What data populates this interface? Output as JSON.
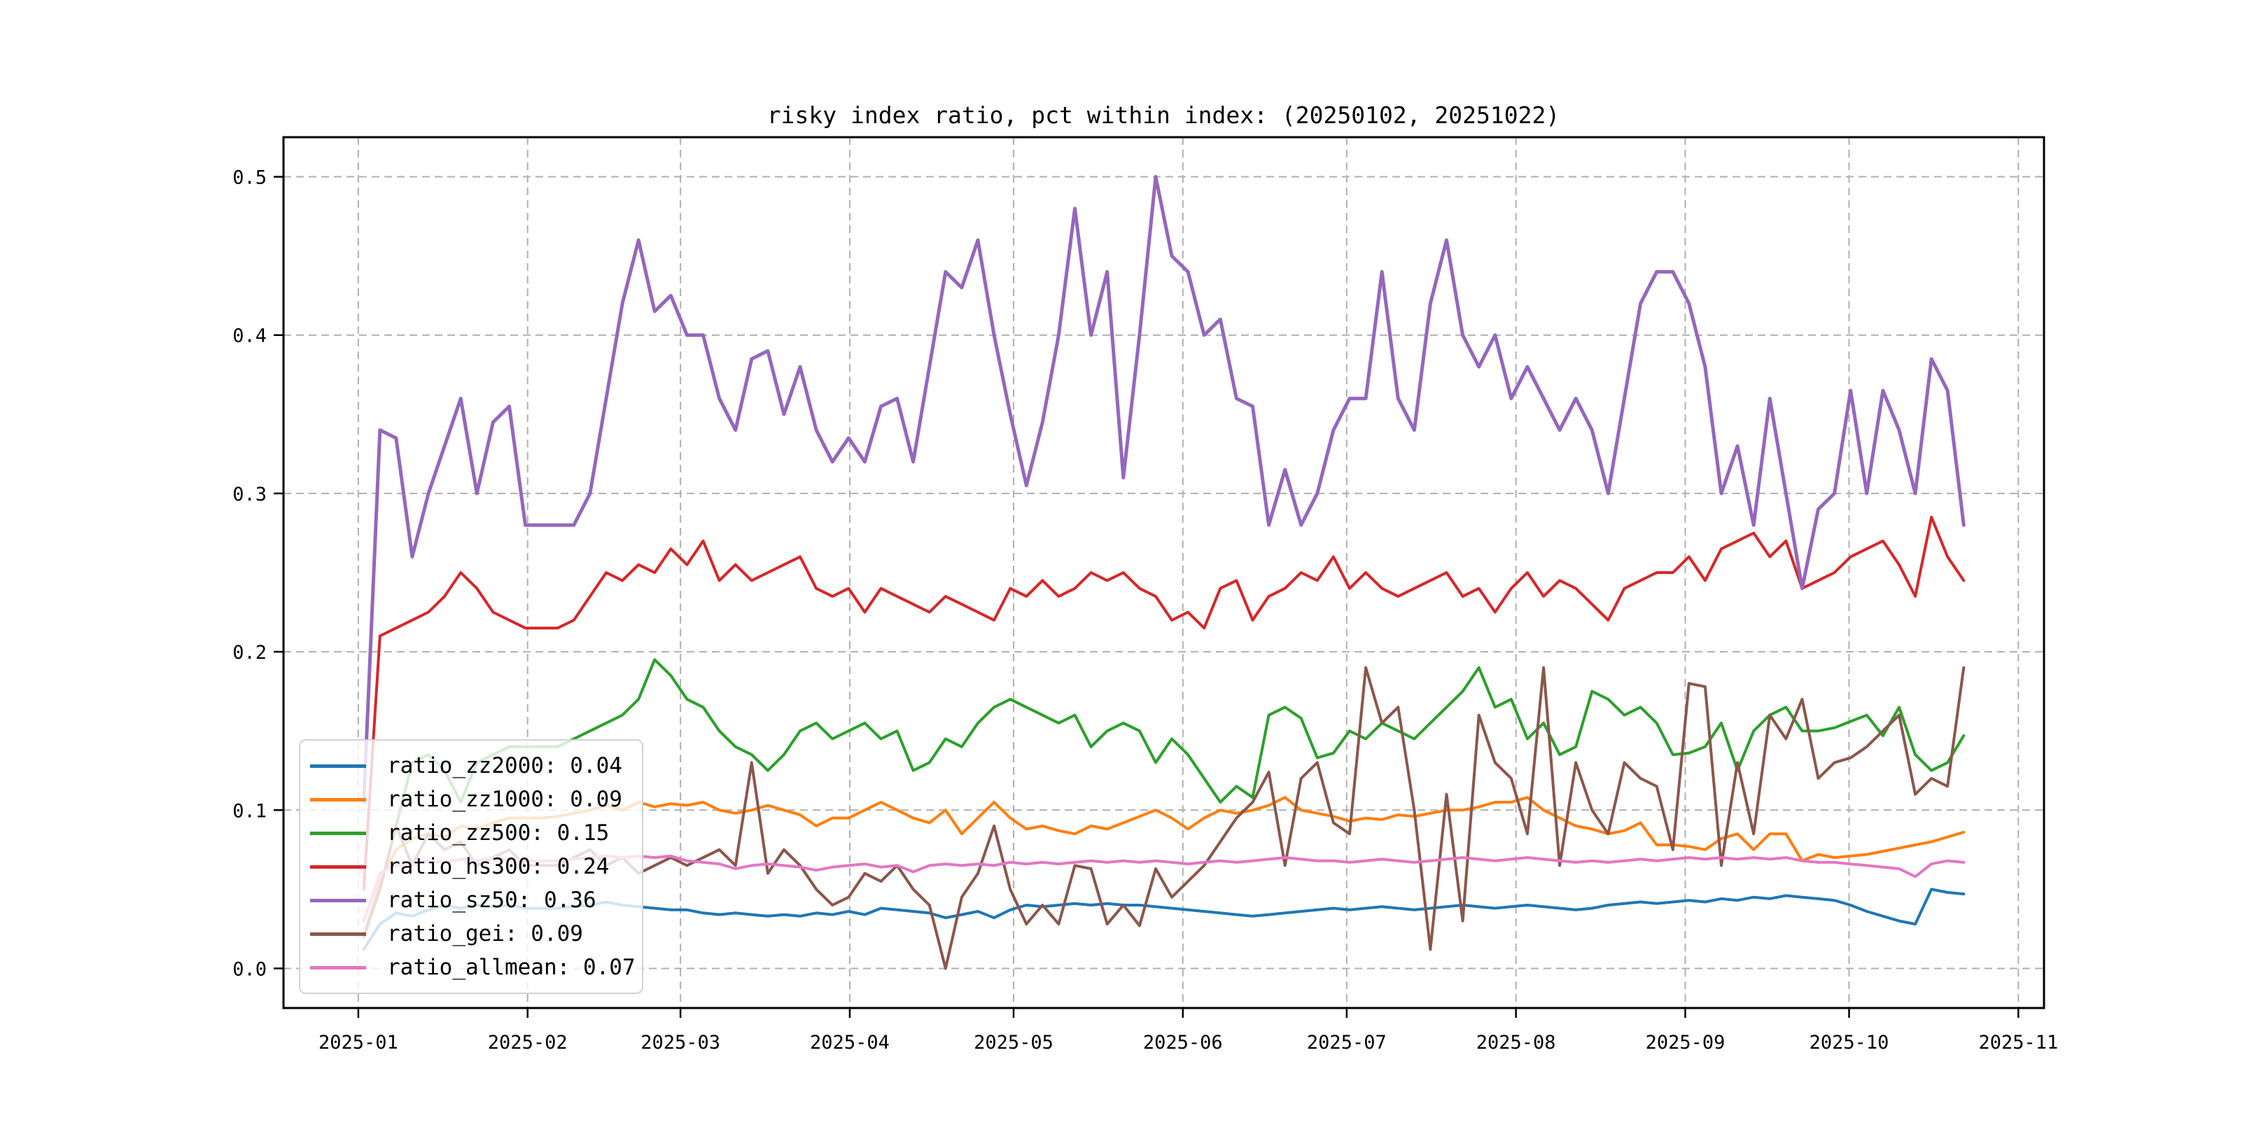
{
  "title": "risky index ratio, pct within index: (20250102, 20251022)",
  "colors": {
    "background": "#ffffff",
    "grid": "#b0b0b0",
    "spine": "#000000",
    "tick_label": "#000000",
    "legend_border": "#d2d2d2"
  },
  "legend": {
    "position": "lower left"
  },
  "chart_data": {
    "type": "line",
    "title": "risky index ratio, pct within index: (20250102, 20251022)",
    "xlabel": "",
    "ylabel": "",
    "grid": true,
    "legend_position": "lower left",
    "x_axis": {
      "tick_labels": [
        "2025-01",
        "2025-02",
        "2025-03",
        "2025-04",
        "2025-05",
        "2025-06",
        "2025-07",
        "2025-08",
        "2025-09",
        "2025-10",
        "2025-11"
      ],
      "tick_days": [
        0,
        31,
        59,
        90,
        120,
        151,
        181,
        212,
        243,
        273,
        304
      ],
      "data_start_day": 1,
      "data_end_day": 294,
      "xlim_days": [
        -13.7,
        308.7
      ]
    },
    "y_axis": {
      "tick_labels": [
        "0.0",
        "0.1",
        "0.2",
        "0.3",
        "0.4",
        "0.5"
      ],
      "tick_values": [
        0.0,
        0.1,
        0.2,
        0.3,
        0.4,
        0.5
      ],
      "ylim": [
        -0.025,
        0.525
      ]
    },
    "series": [
      {
        "name": "ratio_zz2000",
        "legend_label": "ratio_zz2000: 0.04",
        "mean": 0.04,
        "color": "#1f77b4",
        "values": [
          0.012,
          0.028,
          0.035,
          0.033,
          0.037,
          0.04,
          0.038,
          0.04,
          0.039,
          0.04,
          0.038,
          0.038,
          0.038,
          0.039,
          0.04,
          0.042,
          0.04,
          0.039,
          0.038,
          0.037,
          0.037,
          0.035,
          0.034,
          0.035,
          0.034,
          0.033,
          0.034,
          0.033,
          0.035,
          0.034,
          0.036,
          0.034,
          0.038,
          0.037,
          0.036,
          0.035,
          0.032,
          0.034,
          0.036,
          0.032,
          0.037,
          0.04,
          0.039,
          0.04,
          0.041,
          0.04,
          0.041,
          0.04,
          0.04,
          0.039,
          0.038,
          0.037,
          0.036,
          0.035,
          0.034,
          0.033,
          0.034,
          0.035,
          0.036,
          0.037,
          0.038,
          0.037,
          0.038,
          0.039,
          0.038,
          0.037,
          0.038,
          0.039,
          0.04,
          0.039,
          0.038,
          0.039,
          0.04,
          0.039,
          0.038,
          0.037,
          0.038,
          0.04,
          0.041,
          0.042,
          0.041,
          0.042,
          0.043,
          0.042,
          0.044,
          0.043,
          0.045,
          0.044,
          0.046,
          0.045,
          0.044,
          0.043,
          0.04,
          0.036,
          0.033,
          0.03,
          0.028,
          0.05,
          0.048,
          0.047
        ]
      },
      {
        "name": "ratio_zz1000",
        "legend_label": "ratio_zz1000: 0.09",
        "mean": 0.09,
        "color": "#ff7f0e",
        "values": [
          0.02,
          0.055,
          0.075,
          0.082,
          0.085,
          0.083,
          0.09,
          0.088,
          0.092,
          0.095,
          0.095,
          0.095,
          0.096,
          0.098,
          0.1,
          0.103,
          0.1,
          0.105,
          0.102,
          0.104,
          0.103,
          0.105,
          0.1,
          0.098,
          0.1,
          0.103,
          0.1,
          0.097,
          0.09,
          0.095,
          0.095,
          0.1,
          0.105,
          0.1,
          0.095,
          0.092,
          0.1,
          0.085,
          0.095,
          0.105,
          0.095,
          0.088,
          0.09,
          0.087,
          0.085,
          0.09,
          0.088,
          0.092,
          0.096,
          0.1,
          0.095,
          0.088,
          0.095,
          0.1,
          0.098,
          0.1,
          0.103,
          0.108,
          0.1,
          0.098,
          0.096,
          0.093,
          0.095,
          0.094,
          0.097,
          0.096,
          0.098,
          0.1,
          0.1,
          0.102,
          0.105,
          0.105,
          0.108,
          0.1,
          0.095,
          0.09,
          0.088,
          0.085,
          0.087,
          0.092,
          0.078,
          0.078,
          0.077,
          0.075,
          0.082,
          0.085,
          0.075,
          0.085,
          0.085,
          0.068,
          0.072,
          0.07,
          0.071,
          0.072,
          0.074,
          0.076,
          0.078,
          0.08,
          0.083,
          0.086
        ]
      },
      {
        "name": "ratio_zz500",
        "legend_label": "ratio_zz500: 0.15",
        "mean": 0.15,
        "color": "#2ca02c",
        "values": [
          0.02,
          0.05,
          0.09,
          0.13,
          0.135,
          0.125,
          0.105,
          0.13,
          0.135,
          0.14,
          0.14,
          0.14,
          0.14,
          0.145,
          0.15,
          0.155,
          0.16,
          0.17,
          0.195,
          0.185,
          0.17,
          0.165,
          0.15,
          0.14,
          0.135,
          0.125,
          0.135,
          0.15,
          0.155,
          0.145,
          0.15,
          0.155,
          0.145,
          0.15,
          0.125,
          0.13,
          0.145,
          0.14,
          0.155,
          0.165,
          0.17,
          0.165,
          0.16,
          0.155,
          0.16,
          0.14,
          0.15,
          0.155,
          0.15,
          0.13,
          0.145,
          0.135,
          0.12,
          0.105,
          0.115,
          0.108,
          0.16,
          0.165,
          0.158,
          0.133,
          0.136,
          0.15,
          0.145,
          0.155,
          0.15,
          0.145,
          0.155,
          0.165,
          0.175,
          0.19,
          0.165,
          0.17,
          0.145,
          0.155,
          0.135,
          0.14,
          0.175,
          0.17,
          0.16,
          0.165,
          0.155,
          0.135,
          0.136,
          0.14,
          0.155,
          0.125,
          0.15,
          0.16,
          0.165,
          0.15,
          0.15,
          0.152,
          0.156,
          0.16,
          0.147,
          0.165,
          0.135,
          0.125,
          0.13,
          0.147
        ]
      },
      {
        "name": "ratio_hs300",
        "legend_label": "ratio_hs300: 0.24",
        "mean": 0.24,
        "color": "#d62728",
        "values": [
          0.05,
          0.21,
          0.215,
          0.22,
          0.225,
          0.235,
          0.25,
          0.24,
          0.225,
          0.22,
          0.215,
          0.215,
          0.215,
          0.22,
          0.235,
          0.25,
          0.245,
          0.255,
          0.25,
          0.265,
          0.255,
          0.27,
          0.245,
          0.255,
          0.245,
          0.25,
          0.255,
          0.26,
          0.24,
          0.235,
          0.24,
          0.225,
          0.24,
          0.235,
          0.23,
          0.225,
          0.235,
          0.23,
          0.225,
          0.22,
          0.24,
          0.235,
          0.245,
          0.235,
          0.24,
          0.25,
          0.245,
          0.25,
          0.24,
          0.235,
          0.22,
          0.225,
          0.215,
          0.24,
          0.245,
          0.22,
          0.235,
          0.24,
          0.25,
          0.245,
          0.26,
          0.24,
          0.25,
          0.24,
          0.235,
          0.24,
          0.245,
          0.25,
          0.235,
          0.24,
          0.225,
          0.24,
          0.25,
          0.235,
          0.245,
          0.24,
          0.23,
          0.22,
          0.24,
          0.245,
          0.25,
          0.25,
          0.26,
          0.245,
          0.265,
          0.27,
          0.275,
          0.26,
          0.27,
          0.24,
          0.245,
          0.25,
          0.26,
          0.265,
          0.27,
          0.255,
          0.235,
          0.285,
          0.26,
          0.245
        ]
      },
      {
        "name": "ratio_sz50",
        "legend_label": "ratio_sz50: 0.36",
        "mean": 0.36,
        "color": "#9467bd",
        "values": [
          0.105,
          0.34,
          0.335,
          0.26,
          0.3,
          0.33,
          0.36,
          0.3,
          0.345,
          0.355,
          0.28,
          0.28,
          0.28,
          0.28,
          0.3,
          0.36,
          0.42,
          0.46,
          0.415,
          0.425,
          0.4,
          0.4,
          0.36,
          0.34,
          0.385,
          0.39,
          0.35,
          0.38,
          0.34,
          0.32,
          0.335,
          0.32,
          0.355,
          0.36,
          0.32,
          0.38,
          0.44,
          0.43,
          0.46,
          0.4,
          0.35,
          0.305,
          0.345,
          0.4,
          0.48,
          0.4,
          0.44,
          0.31,
          0.4,
          0.5,
          0.45,
          0.44,
          0.4,
          0.41,
          0.36,
          0.355,
          0.28,
          0.315,
          0.28,
          0.3,
          0.34,
          0.36,
          0.36,
          0.44,
          0.36,
          0.34,
          0.42,
          0.46,
          0.4,
          0.38,
          0.4,
          0.36,
          0.38,
          0.36,
          0.34,
          0.36,
          0.34,
          0.3,
          0.36,
          0.42,
          0.44,
          0.44,
          0.42,
          0.38,
          0.3,
          0.33,
          0.28,
          0.36,
          0.3,
          0.24,
          0.29,
          0.3,
          0.365,
          0.3,
          0.365,
          0.34,
          0.3,
          0.385,
          0.365,
          0.28
        ]
      },
      {
        "name": "ratio_gei",
        "legend_label": "ratio_gei: 0.09",
        "mean": 0.09,
        "color": "#8c564b",
        "values": [
          0.02,
          0.05,
          0.09,
          0.065,
          0.085,
          0.075,
          0.08,
          0.065,
          0.07,
          0.075,
          0.065,
          0.065,
          0.065,
          0.07,
          0.075,
          0.065,
          0.07,
          0.06,
          0.065,
          0.07,
          0.065,
          0.07,
          0.075,
          0.065,
          0.13,
          0.06,
          0.075,
          0.065,
          0.05,
          0.04,
          0.045,
          0.06,
          0.055,
          0.065,
          0.05,
          0.04,
          0.0,
          0.045,
          0.06,
          0.09,
          0.05,
          0.028,
          0.04,
          0.028,
          0.065,
          0.063,
          0.028,
          0.04,
          0.027,
          0.063,
          0.045,
          0.055,
          0.065,
          0.08,
          0.095,
          0.105,
          0.124,
          0.065,
          0.12,
          0.13,
          0.092,
          0.085,
          0.19,
          0.155,
          0.165,
          0.1,
          0.012,
          0.11,
          0.03,
          0.16,
          0.13,
          0.12,
          0.085,
          0.19,
          0.065,
          0.13,
          0.1,
          0.085,
          0.13,
          0.12,
          0.115,
          0.075,
          0.18,
          0.178,
          0.065,
          0.13,
          0.085,
          0.16,
          0.145,
          0.17,
          0.12,
          0.13,
          0.133,
          0.14,
          0.15,
          0.16,
          0.11,
          0.12,
          0.115,
          0.19
        ]
      },
      {
        "name": "ratio_allmean",
        "legend_label": "ratio_allmean: 0.07",
        "mean": 0.07,
        "color": "#e377c2",
        "values": [
          0.03,
          0.06,
          0.065,
          0.066,
          0.068,
          0.067,
          0.069,
          0.068,
          0.07,
          0.069,
          0.068,
          0.068,
          0.068,
          0.069,
          0.07,
          0.071,
          0.07,
          0.071,
          0.07,
          0.071,
          0.068,
          0.067,
          0.066,
          0.063,
          0.065,
          0.066,
          0.065,
          0.064,
          0.062,
          0.064,
          0.065,
          0.066,
          0.064,
          0.065,
          0.061,
          0.065,
          0.066,
          0.065,
          0.066,
          0.065,
          0.067,
          0.066,
          0.067,
          0.066,
          0.067,
          0.068,
          0.067,
          0.068,
          0.067,
          0.068,
          0.067,
          0.066,
          0.067,
          0.068,
          0.067,
          0.068,
          0.069,
          0.07,
          0.069,
          0.068,
          0.068,
          0.067,
          0.068,
          0.069,
          0.068,
          0.067,
          0.068,
          0.069,
          0.07,
          0.069,
          0.068,
          0.069,
          0.07,
          0.069,
          0.068,
          0.067,
          0.068,
          0.067,
          0.068,
          0.069,
          0.068,
          0.069,
          0.07,
          0.069,
          0.07,
          0.069,
          0.07,
          0.069,
          0.07,
          0.068,
          0.067,
          0.067,
          0.066,
          0.065,
          0.064,
          0.063,
          0.058,
          0.066,
          0.068,
          0.067
        ]
      }
    ]
  }
}
